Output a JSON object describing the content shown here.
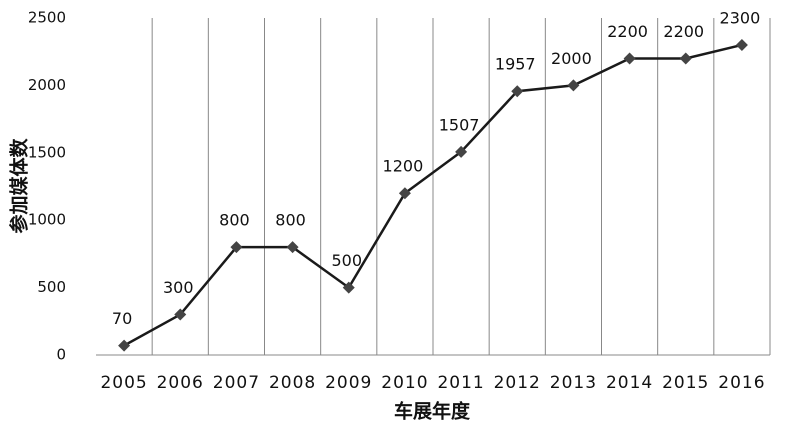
{
  "chart_data": {
    "type": "line",
    "x_label": "车展年度",
    "y_label": "参加媒体数",
    "categories": [
      "2005",
      "2006",
      "2007",
      "2008",
      "2009",
      "2010",
      "2011",
      "2012",
      "2013",
      "2014",
      "2015",
      "2016"
    ],
    "values": [
      70,
      300,
      800,
      800,
      500,
      1200,
      1507,
      1957,
      2000,
      2200,
      2200,
      2300
    ],
    "color": "#1a1a1a",
    "marker_color": "#444444",
    "ylim": [
      0,
      2500
    ],
    "yticks": [
      0,
      500,
      1000,
      1500,
      2000,
      2500
    ],
    "grid": true
  }
}
